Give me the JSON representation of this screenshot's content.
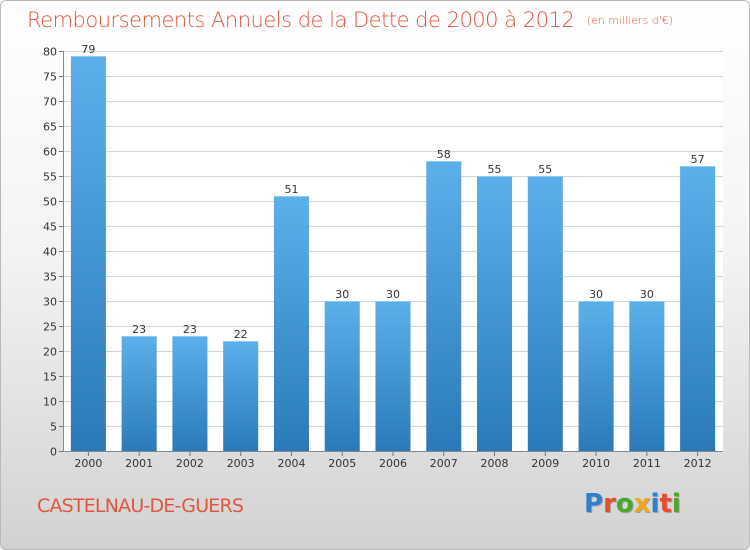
{
  "header": {
    "title": "Remboursements Annuels de la Dette de 2000 à 2012",
    "unit": "(en milliers d'€)"
  },
  "footer": {
    "town": "CASTELNAU-DE-GUERS",
    "logo": "Proxiti"
  },
  "colors": {
    "title": "#e2563d",
    "bar_top": "#5cb0ea",
    "bar_bottom": "#2a7ab9",
    "logo_letters": [
      "#2f7fd0",
      "#e84c2c",
      "#4aa829",
      "#f2a51b",
      "#2f7fd0",
      "#e84c2c",
      "#4aa829"
    ]
  },
  "chart_data": {
    "type": "bar",
    "title": "Remboursements Annuels de la Dette de 2000 à 2012",
    "xlabel": "",
    "ylabel": "",
    "categories": [
      "2000",
      "2001",
      "2002",
      "2003",
      "2004",
      "2005",
      "2006",
      "2007",
      "2008",
      "2009",
      "2010",
      "2011",
      "2012"
    ],
    "values": [
      79,
      23,
      23,
      22,
      51,
      30,
      30,
      58,
      55,
      55,
      30,
      30,
      57
    ],
    "ylim": [
      0,
      80
    ],
    "yticks": [
      0,
      5,
      10,
      15,
      20,
      25,
      30,
      35,
      40,
      45,
      50,
      55,
      60,
      65,
      70,
      75,
      80
    ],
    "grid": true
  }
}
